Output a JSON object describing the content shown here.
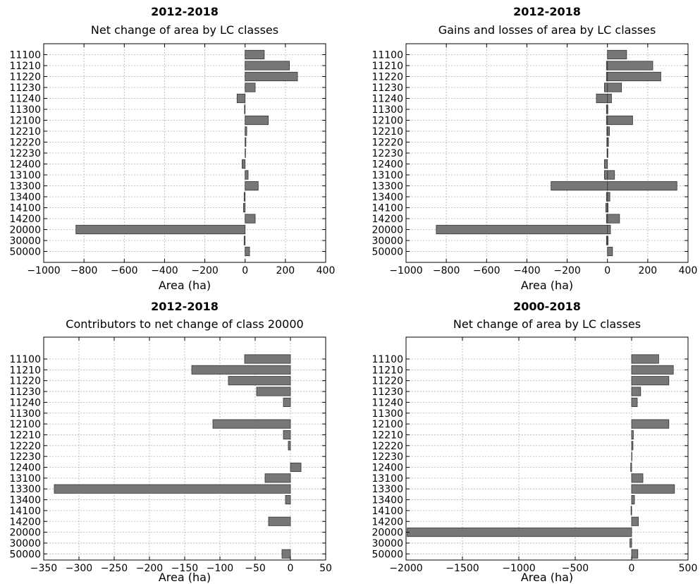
{
  "chart_data": [
    {
      "type": "bar",
      "orientation": "horizontal",
      "title": "2012-2018",
      "subtitle": "Net change of area by LC classes",
      "xlabel": "Area (ha)",
      "ylabel": "",
      "xlim": [
        -1000,
        400
      ],
      "xticks": [
        -1000,
        -800,
        -600,
        -400,
        -200,
        0,
        200,
        400
      ],
      "grid": true,
      "categories": [
        "11100",
        "11210",
        "11220",
        "11230",
        "11240",
        "11300",
        "12100",
        "12210",
        "12220",
        "12230",
        "12400",
        "13100",
        "13300",
        "13400",
        "14100",
        "14200",
        "20000",
        "30000",
        "50000"
      ],
      "series": [
        {
          "values": [
            95,
            220,
            260,
            50,
            -40,
            -3,
            115,
            8,
            4,
            2,
            -15,
            15,
            65,
            -5,
            -8,
            50,
            -840,
            -5,
            22
          ]
        }
      ]
    },
    {
      "type": "bar",
      "orientation": "horizontal",
      "title": "2012-2018",
      "subtitle": "Gains and losses of area by LC classes",
      "xlabel": "Area (ha)",
      "ylabel": "",
      "xlim": [
        -1000,
        400
      ],
      "xticks": [
        -1000,
        -800,
        -600,
        -400,
        -200,
        0,
        200,
        400
      ],
      "grid": true,
      "categories": [
        "11100",
        "11210",
        "11220",
        "11230",
        "11240",
        "11300",
        "12100",
        "12210",
        "12220",
        "12230",
        "12400",
        "13100",
        "13300",
        "13400",
        "14100",
        "14200",
        "20000",
        "30000",
        "50000"
      ],
      "series": [
        {
          "values": [
            95,
            225,
            265,
            70,
            20,
            2,
            125,
            10,
            5,
            2,
            0,
            35,
            345,
            12,
            3,
            60,
            15,
            3,
            25
          ]
        },
        {
          "values": [
            0,
            -5,
            -5,
            -15,
            -55,
            -5,
            -5,
            -3,
            -3,
            -2,
            -15,
            -15,
            -280,
            -5,
            -8,
            -5,
            -850,
            -5,
            0
          ]
        }
      ]
    },
    {
      "type": "bar",
      "orientation": "horizontal",
      "title": "2012-2018",
      "subtitle": "Contributors to net change of class 20000",
      "xlabel": "Area (ha)",
      "ylabel": "",
      "xlim": [
        -350,
        50
      ],
      "xticks": [
        -350,
        -300,
        -250,
        -200,
        -150,
        -100,
        -50,
        0,
        50
      ],
      "grid": true,
      "categories": [
        "11100",
        "11210",
        "11220",
        "11230",
        "11240",
        "11300",
        "12100",
        "12210",
        "12220",
        "12230",
        "12400",
        "13100",
        "13300",
        "13400",
        "14100",
        "14200",
        "20000",
        "30000",
        "50000"
      ],
      "series": [
        {
          "values": [
            -65,
            -140,
            -88,
            -48,
            -10,
            0,
            -110,
            -10,
            -3,
            0,
            15,
            -36,
            -335,
            -7,
            0,
            -31,
            0,
            0,
            -12
          ]
        }
      ]
    },
    {
      "type": "bar",
      "orientation": "horizontal",
      "title": "2000-2018",
      "subtitle": "Net change of area by LC classes",
      "xlabel": "Area (ha)",
      "ylabel": "",
      "xlim": [
        -2000,
        500
      ],
      "xticks": [
        -2000,
        -1500,
        -1000,
        -500,
        0,
        500
      ],
      "grid": true,
      "categories": [
        "11100",
        "11210",
        "11220",
        "11230",
        "11240",
        "11300",
        "12100",
        "12210",
        "12220",
        "12230",
        "12400",
        "13100",
        "13300",
        "13400",
        "14100",
        "14200",
        "20000",
        "30000",
        "50000"
      ],
      "series": [
        {
          "values": [
            240,
            370,
            330,
            80,
            50,
            0,
            330,
            15,
            12,
            3,
            -8,
            100,
            380,
            25,
            -5,
            60,
            -1990,
            -15,
            55
          ]
        }
      ]
    }
  ]
}
